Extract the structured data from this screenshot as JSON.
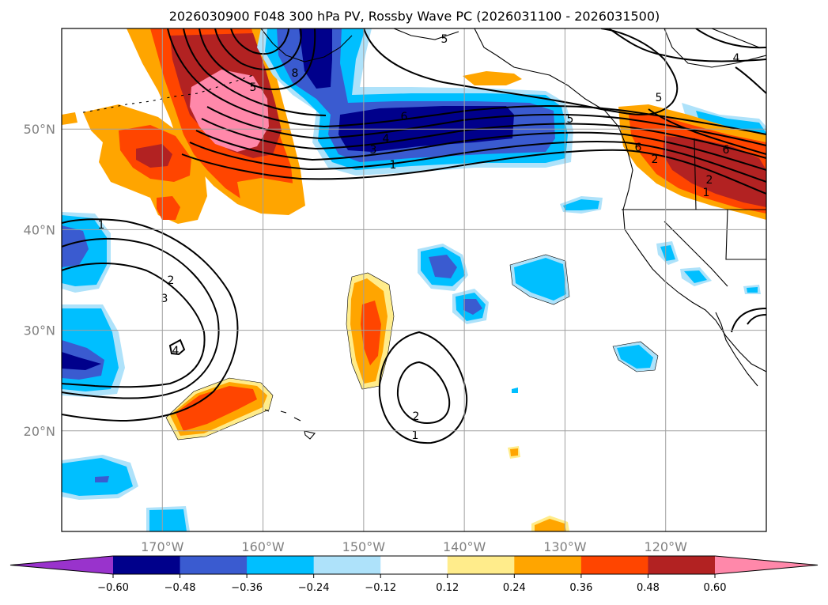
{
  "chart_data": {
    "type": "contour-map",
    "title": "2026030900 F048 300 hPa PV, Rossby Wave PC (2026031100 - 2026031500)",
    "map_extent": {
      "lon": [
        -180,
        -110
      ],
      "lat": [
        10,
        60
      ]
    },
    "lon_ticks": [
      -170,
      -160,
      -150,
      -140,
      -130,
      -120
    ],
    "lon_tick_labels": [
      "170°W",
      "160°W",
      "150°W",
      "140°W",
      "130°W",
      "120°W"
    ],
    "lat_ticks": [
      20,
      30,
      40,
      50
    ],
    "lat_tick_labels": [
      "20°N",
      "30°N",
      "40°N",
      "50°N"
    ],
    "grid": true,
    "colorbar": {
      "orientation": "horizontal",
      "extend": "both",
      "levels": [
        -0.72,
        -0.6,
        -0.48,
        -0.36,
        -0.24,
        -0.12,
        0.12,
        0.24,
        0.36,
        0.48,
        0.6,
        0.72
      ],
      "tick_values": [
        -0.6,
        -0.48,
        -0.36,
        -0.24,
        -0.12,
        0.12,
        0.24,
        0.36,
        0.48,
        0.6
      ],
      "tick_labels": [
        "−0.60",
        "−0.48",
        "−0.36",
        "−0.24",
        "−0.12",
        "0.12",
        "0.24",
        "0.36",
        "0.48",
        "0.60"
      ],
      "colors": [
        "#9933cc",
        "#00008b",
        "#3a5bd0",
        "#00bfff",
        "#aee2fa",
        "#ffffff",
        "#ffec8b",
        "#ffa500",
        "#ff4500",
        "#b22222",
        "#ff88aa"
      ]
    },
    "filled_anomalies": [
      {
        "name": "Gulf of Alaska positive PV",
        "center": [
          -165,
          52
        ],
        "peak": 0.6,
        "level_index": 10
      },
      {
        "name": "Central Pacific positive PV west",
        "center": [
          -173,
          47
        ],
        "peak": 0.48,
        "level_index": 9
      },
      {
        "name": "NE Pacific negative PV streak",
        "center": [
          -143,
          49
        ],
        "peak": -0.6,
        "level_index": 1
      },
      {
        "name": "Pacific Northwest positive PV",
        "center": [
          -116,
          46
        ],
        "peak": 0.48,
        "level_index": 9
      },
      {
        "name": "Subtropical positive PV near 150W",
        "center": [
          -150,
          30
        ],
        "peak": 0.36,
        "level_index": 8
      },
      {
        "name": "Positive PV near Hawaii",
        "center": [
          -165,
          22
        ],
        "peak": 0.36,
        "level_index": 8
      },
      {
        "name": "Negative PV west edge 40N",
        "center": [
          -178,
          39
        ],
        "peak": -0.48,
        "level_index": 2
      },
      {
        "name": "Negative PV west edge 28N",
        "center": [
          -177,
          28
        ],
        "peak": -0.6,
        "level_index": 1
      },
      {
        "name": "Negative PV 37N 141W",
        "center": [
          -141,
          37
        ],
        "peak": -0.48,
        "level_index": 2
      },
      {
        "name": "Negative PV 37N 132W",
        "center": [
          -132,
          36
        ],
        "peak": -0.36,
        "level_index": 3
      },
      {
        "name": "Negative PV 32N 139W",
        "center": [
          -139,
          32
        ],
        "peak": -0.48,
        "level_index": 2
      },
      {
        "name": "Negative PV 26N 126W",
        "center": [
          -126,
          27
        ],
        "peak": -0.36,
        "level_index": 3
      },
      {
        "name": "Negative PV 15N 174W",
        "center": [
          -174,
          15
        ],
        "peak": -0.36,
        "level_index": 3
      }
    ],
    "contour_labels": [
      "5",
      "4",
      "5",
      "5",
      "6",
      "8",
      "6",
      "5",
      "4",
      "3",
      "2",
      "1",
      "1",
      "6",
      "2",
      "1",
      "2",
      "3",
      "4",
      "2",
      "1"
    ]
  }
}
